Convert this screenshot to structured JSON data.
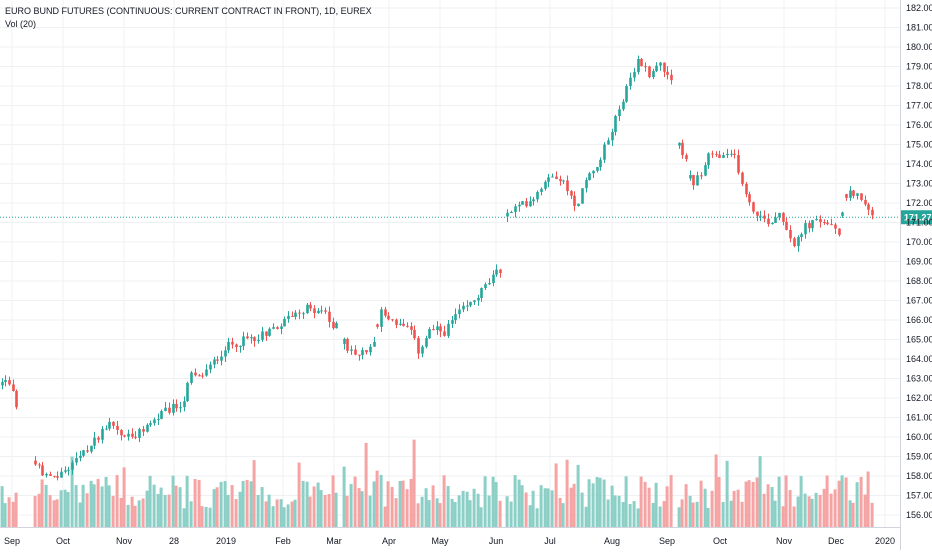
{
  "chart_data": {
    "type": "candlestick",
    "title": "EURO BUND FUTURES (CONTINUOUS: CURRENT CONTRACT IN FRONT), 1D, EUREX",
    "indicator_label": "Vol (20)",
    "y_ticks": [
      "156.00",
      "157.00",
      "158.00",
      "159.00",
      "160.00",
      "161.00",
      "162.00",
      "163.00",
      "164.00",
      "165.00",
      "166.00",
      "167.00",
      "168.00",
      "169.00",
      "170.00",
      "171.00",
      "172.00",
      "173.00",
      "174.00",
      "175.00",
      "176.00",
      "177.00",
      "178.00",
      "179.00",
      "180.00",
      "181.00",
      "182.00"
    ],
    "ylim": [
      155.5,
      182.5
    ],
    "x_ticks": [
      "Sep",
      "Oct",
      "Nov",
      "28",
      "2019",
      "Feb",
      "Mar",
      "Apr",
      "May",
      "Jun",
      "Jul",
      "Aug",
      "Sep",
      "Oct",
      "Nov",
      "Dec",
      "2020"
    ],
    "current_price": "171.27",
    "anchors": [
      [
        0,
        162.5
      ],
      [
        8,
        163.0
      ],
      [
        12,
        162.3
      ],
      [
        20,
        161.0
      ],
      [
        35,
        158.6
      ],
      [
        50,
        157.8
      ],
      [
        65,
        158.3
      ],
      [
        85,
        159.2
      ],
      [
        100,
        160.2
      ],
      [
        110,
        160.9
      ],
      [
        120,
        160.1
      ],
      [
        135,
        160.0
      ],
      [
        150,
        160.7
      ],
      [
        165,
        161.3
      ],
      [
        178,
        161.6
      ],
      [
        185,
        162.0
      ],
      [
        190,
        163.2
      ],
      [
        198,
        163.0
      ],
      [
        210,
        163.6
      ],
      [
        225,
        164.6
      ],
      [
        240,
        164.9
      ],
      [
        255,
        165.1
      ],
      [
        270,
        165.5
      ],
      [
        285,
        166.0
      ],
      [
        297,
        166.5
      ],
      [
        310,
        166.6
      ],
      [
        322,
        166.5
      ],
      [
        333,
        165.5
      ],
      [
        340,
        165.9
      ],
      [
        345,
        164.5
      ],
      [
        360,
        164.2
      ],
      [
        372,
        164.8
      ],
      [
        380,
        166.4
      ],
      [
        395,
        165.9
      ],
      [
        410,
        165.4
      ],
      [
        418,
        164.4
      ],
      [
        430,
        165.5
      ],
      [
        445,
        165.4
      ],
      [
        455,
        166.2
      ],
      [
        470,
        166.8
      ],
      [
        485,
        167.7
      ],
      [
        500,
        168.6
      ],
      [
        505,
        171.3
      ],
      [
        515,
        171.7
      ],
      [
        525,
        172.0
      ],
      [
        535,
        172.4
      ],
      [
        550,
        173.6
      ],
      [
        560,
        173.3
      ],
      [
        570,
        172.3
      ],
      [
        575,
        171.7
      ],
      [
        585,
        173.1
      ],
      [
        600,
        174.3
      ],
      [
        610,
        175.5
      ],
      [
        620,
        177.1
      ],
      [
        630,
        178.2
      ],
      [
        638,
        179.3
      ],
      [
        650,
        178.6
      ],
      [
        660,
        179.2
      ],
      [
        670,
        178.5
      ],
      [
        675,
        177.4
      ],
      [
        678,
        175.1
      ],
      [
        685,
        174.3
      ],
      [
        692,
        172.7
      ],
      [
        700,
        173.5
      ],
      [
        710,
        174.5
      ],
      [
        722,
        174.3
      ],
      [
        735,
        174.4
      ],
      [
        742,
        172.9
      ],
      [
        750,
        171.8
      ],
      [
        760,
        171.3
      ],
      [
        770,
        171.0
      ],
      [
        780,
        171.6
      ],
      [
        788,
        170.5
      ],
      [
        795,
        169.8
      ],
      [
        805,
        170.8
      ],
      [
        815,
        171.0
      ],
      [
        825,
        171.1
      ],
      [
        838,
        170.3
      ],
      [
        845,
        172.3
      ],
      [
        855,
        172.6
      ],
      [
        862,
        172.0
      ],
      [
        870,
        171.5
      ],
      [
        873,
        171.3
      ]
    ],
    "gaps": [
      [
        20,
        33
      ],
      [
        338,
        343
      ],
      [
        502,
        504
      ],
      [
        672,
        677
      ]
    ]
  }
}
